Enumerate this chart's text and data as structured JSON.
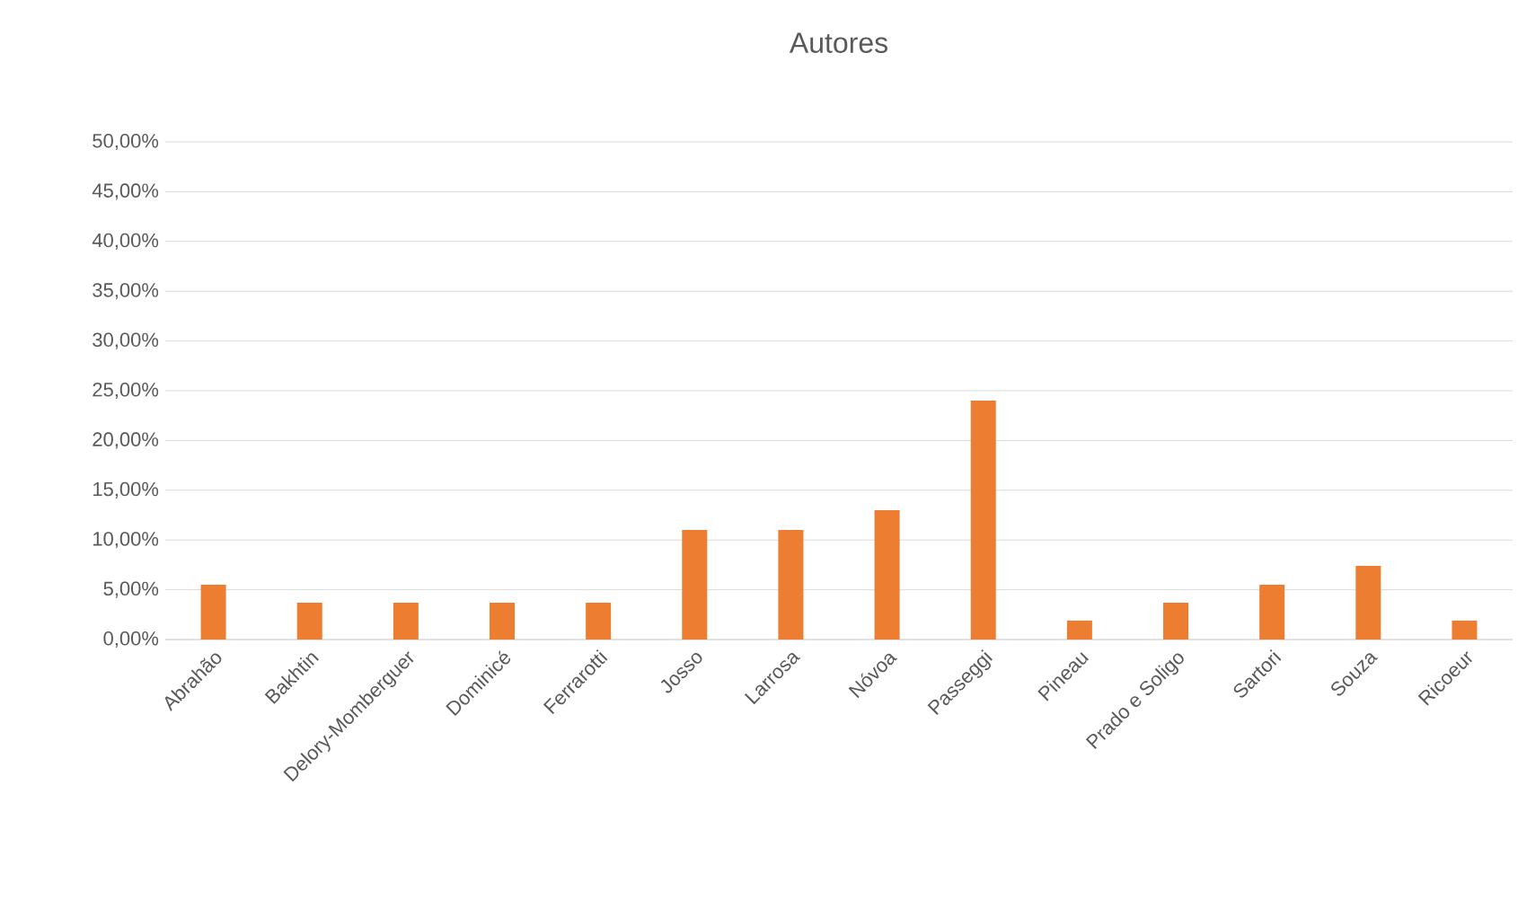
{
  "chart_data": {
    "type": "bar",
    "title": "Autores",
    "categories": [
      "Abrahão",
      "Bakhtin",
      "Delory-Momberguer",
      "Dominicé",
      "Ferrarotti",
      "Josso",
      "Larrosa",
      "Nóvoa",
      "Passeggi",
      "Pineau",
      "Prado e Soligo",
      "Sartori",
      "Souza",
      "Ricoeur"
    ],
    "values": [
      5.5,
      3.7,
      3.7,
      3.7,
      3.7,
      11,
      11,
      13,
      24,
      1.9,
      3.7,
      5.5,
      7.4,
      1.9
    ],
    "color": "#ed7d31",
    "ylim": [
      0,
      50
    ],
    "yticks": [
      {
        "value": 0,
        "label": "0,00%"
      },
      {
        "value": 5,
        "label": "5,00%"
      },
      {
        "value": 10,
        "label": "10,00%"
      },
      {
        "value": 15,
        "label": "15,00%"
      },
      {
        "value": 20,
        "label": "20,00%"
      },
      {
        "value": 25,
        "label": "25,00%"
      },
      {
        "value": 30,
        "label": "30,00%"
      },
      {
        "value": 35,
        "label": "35,00%"
      },
      {
        "value": 40,
        "label": "40,00%"
      },
      {
        "value": 45,
        "label": "45,00%"
      },
      {
        "value": 50,
        "label": "50,00%"
      }
    ],
    "grid": "y"
  }
}
